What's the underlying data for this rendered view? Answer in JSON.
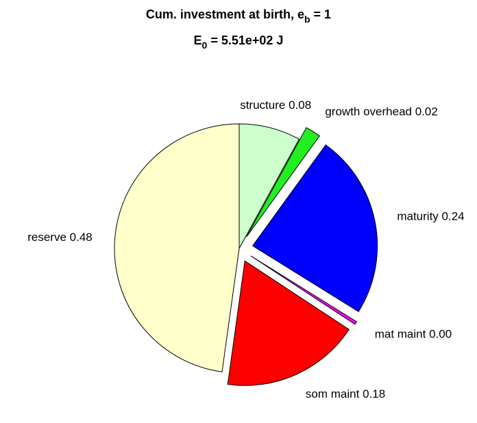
{
  "chart_data": {
    "type": "pie",
    "title": [
      "Cum. investment at birth, e",
      "b",
      " = 1"
    ],
    "subtitle": [
      "E",
      "0",
      " = 5.51e+02 J"
    ],
    "categories": [
      "structure",
      "growth overhead",
      "maturity",
      "mat maint",
      "som maint",
      "reserve"
    ],
    "values": [
      0.08,
      0.02,
      0.24,
      0.004,
      0.18,
      0.48
    ],
    "value_labels": [
      "0.08",
      "0.02",
      "0.24",
      "0.00",
      "0.18",
      "0.48"
    ],
    "colors": [
      "#ccffcc",
      "#22ee22",
      "#0000ff",
      "#ff00ff",
      "#ff0000",
      "#ffffcc"
    ],
    "explode": [
      false,
      true,
      true,
      true,
      true,
      false
    ]
  }
}
